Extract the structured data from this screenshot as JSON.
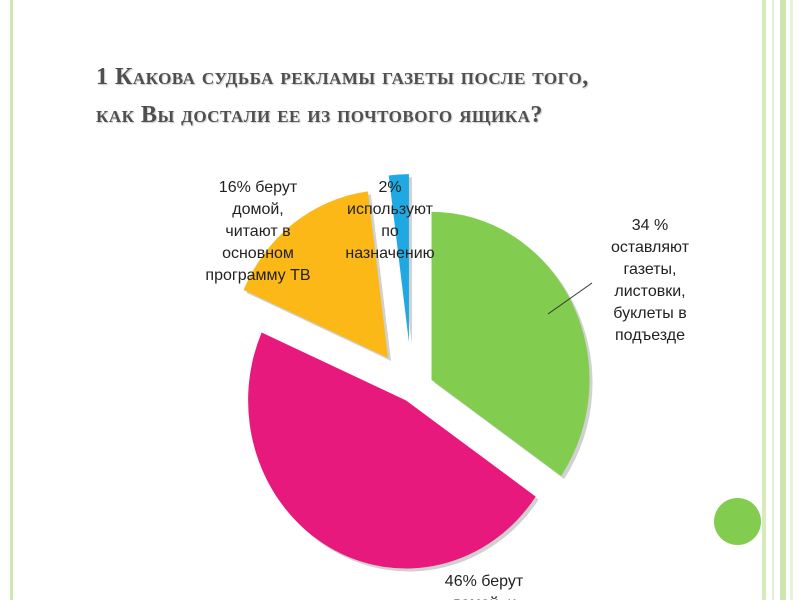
{
  "slide": {
    "title_line1": "1 Какова судьба рекламы газеты после того,",
    "title_line2": "как Вы достали ее из почтового ящика?"
  },
  "colors": {
    "green": "#82cc4f",
    "pink": "#e8197d",
    "yellow": "#fbb817",
    "blue": "#1fa9e3",
    "accent_dot": "#82cc4f"
  },
  "chart_data": {
    "type": "pie",
    "title": "",
    "exploded": true,
    "slices": [
      {
        "value": 34,
        "color": "#82cc4f",
        "label_lines": [
          "34 %",
          "оставляют",
          "газеты,",
          "листовки,",
          "буклеты в",
          "подъезде"
        ]
      },
      {
        "value": 46,
        "color": "#e8197d",
        "label_lines": [
          "46% берут",
          "домой, и"
        ]
      },
      {
        "value": 16,
        "color": "#fbb817",
        "label_lines": [
          "16% берут",
          "домой,",
          "читают в",
          "основном",
          "программу ТВ"
        ]
      },
      {
        "value": 2,
        "color": "#1fa9e3",
        "label_lines": [
          "2%",
          "используют",
          "по",
          "назначению"
        ]
      }
    ]
  }
}
